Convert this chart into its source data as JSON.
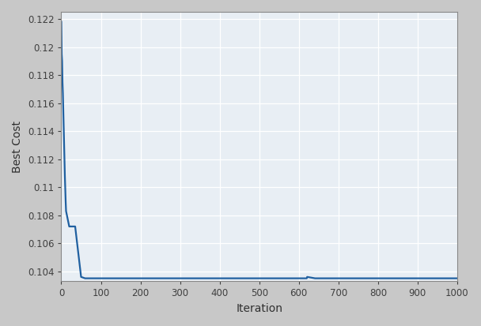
{
  "xlabel": "Iteration",
  "ylabel": "Best Cost",
  "xlim": [
    0,
    1000
  ],
  "ylim": [
    0.1033,
    0.1225
  ],
  "xticks": [
    0,
    100,
    200,
    300,
    400,
    500,
    600,
    700,
    800,
    900,
    1000
  ],
  "yticks": [
    0.104,
    0.106,
    0.108,
    0.11,
    0.112,
    0.114,
    0.116,
    0.118,
    0.12,
    0.122
  ],
  "line_color": "#2060a0",
  "line_width": 1.6,
  "fig_bg_color": "#c8c8c8",
  "plot_bg_color": "#e8eef4",
  "grid_color": "#ffffff",
  "step_points": [
    [
      0,
      0.1218
    ],
    [
      2,
      0.1192
    ],
    [
      3,
      0.1185
    ],
    [
      4,
      0.1167
    ],
    [
      5,
      0.1158
    ],
    [
      6,
      0.1148
    ],
    [
      7,
      0.1135
    ],
    [
      8,
      0.112
    ],
    [
      9,
      0.111
    ],
    [
      10,
      0.11
    ],
    [
      11,
      0.109
    ],
    [
      12,
      0.1082
    ],
    [
      13,
      0.1078
    ],
    [
      20,
      0.1072
    ],
    [
      35,
      0.1072
    ],
    [
      50,
      0.1035
    ],
    [
      620,
      0.1035
    ],
    [
      621,
      0.1035
    ],
    [
      1000,
      0.1035
    ]
  ]
}
